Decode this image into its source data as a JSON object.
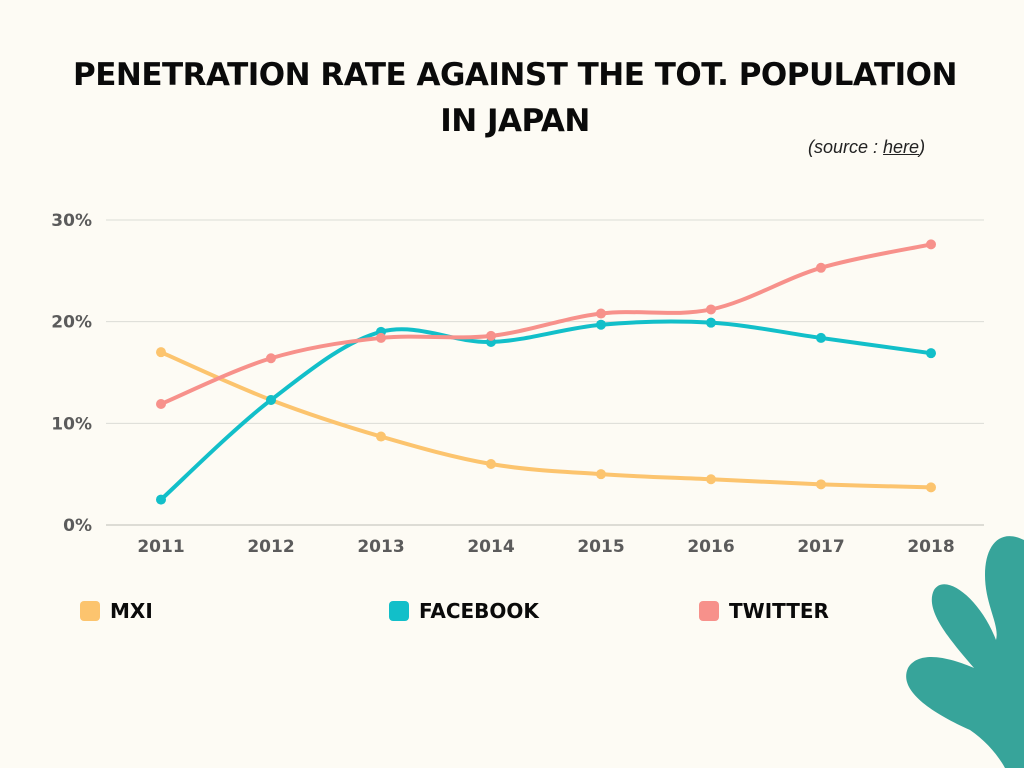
{
  "title_lines": [
    "PENETRATION RATE AGAINST THE TOT. POPULATION",
    "IN JAPAN"
  ],
  "source": {
    "prefix": "(source : ",
    "link_text": "here",
    "suffix": ")"
  },
  "colors": {
    "mxi": "#fcc46e",
    "facebook": "#12bfc9",
    "twitter": "#f7918b",
    "grid": "#dcdcd6",
    "axis_text": "#5b5b5b",
    "decoration": "#37a49a"
  },
  "chart_data": {
    "type": "line",
    "x": [
      "2011",
      "2012",
      "2013",
      "2014",
      "2015",
      "2016",
      "2017",
      "2018"
    ],
    "series": [
      {
        "name": "MXI",
        "color": "#fcc46e",
        "values": [
          17.0,
          12.3,
          8.7,
          6.0,
          5.0,
          4.5,
          4.0,
          3.7
        ]
      },
      {
        "name": "FACEBOOK",
        "color": "#12bfc9",
        "values": [
          2.5,
          12.3,
          19.0,
          18.0,
          19.7,
          19.9,
          18.4,
          16.9
        ]
      },
      {
        "name": "TWITTER",
        "color": "#f7918b",
        "values": [
          11.9,
          16.4,
          18.4,
          18.6,
          20.8,
          21.2,
          25.3,
          27.6
        ]
      }
    ],
    "y_ticks": [
      "0%",
      "10%",
      "20%",
      "30%"
    ],
    "ylim": [
      0,
      30
    ],
    "grid": true,
    "legend_position": "bottom"
  }
}
